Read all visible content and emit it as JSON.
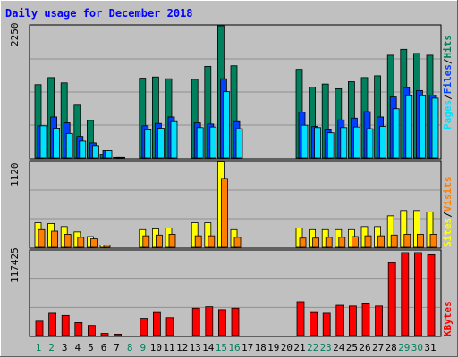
{
  "title": "Daily usage for December 2018",
  "colors": {
    "hits": "#00805c",
    "files": "#0040ff",
    "pages": "#00e0ff",
    "visits": "#ff8000",
    "sites": "#ffff00",
    "kbytes": "#ff0000",
    "title": "#0000ff",
    "weekend_day": "#00805c",
    "weekday_day": "#000000",
    "background": "#c0c0c0"
  },
  "legends": {
    "top": [
      "Pages",
      "/",
      "Files",
      "/",
      "Hits"
    ],
    "middle": [
      "Sites",
      "/",
      "Visits"
    ],
    "bottom": [
      "KBytes"
    ]
  },
  "y_max_labels": {
    "top": "2250",
    "middle": "1120",
    "bottom": "117425"
  },
  "chart_data": {
    "type": "bar",
    "title": "Daily usage for December 2018",
    "categories": [
      "1",
      "2",
      "3",
      "4",
      "5",
      "6",
      "7",
      "8",
      "9",
      "10",
      "11",
      "12",
      "13",
      "14",
      "15",
      "16",
      "17",
      "18",
      "19",
      "20",
      "21",
      "22",
      "23",
      "24",
      "25",
      "26",
      "27",
      "28",
      "29",
      "30",
      "31"
    ],
    "weekend_days": [
      "1",
      "2",
      "8",
      "9",
      "15",
      "16",
      "22",
      "23",
      "29",
      "30"
    ],
    "panels": [
      {
        "name": "Pages / Files / Hits",
        "ymax": 2250,
        "series": [
          {
            "name": "Hits",
            "values": [
              1250,
              1370,
              1280,
              900,
              640,
              60,
              10,
              0,
              1360,
              1380,
              1350,
              0,
              1340,
              1560,
              2250,
              1570,
              0,
              0,
              0,
              0,
              1510,
              1210,
              1260,
              1180,
              1300,
              1370,
              1400,
              1750,
              1850,
              1780,
              1750
            ]
          },
          {
            "name": "Files",
            "values": [
              550,
              700,
              600,
              370,
              260,
              130,
              10,
              0,
              550,
              590,
              700,
              0,
              600,
              580,
              1350,
              620,
              0,
              0,
              0,
              0,
              780,
              540,
              480,
              650,
              680,
              790,
              700,
              1040,
              1200,
              1150,
              1070
            ]
          },
          {
            "name": "Pages",
            "values": [
              550,
              510,
              420,
              290,
              200,
              130,
              10,
              0,
              480,
              510,
              620,
              0,
              520,
              530,
              1130,
              500,
              0,
              0,
              0,
              0,
              560,
              520,
              430,
              520,
              530,
              500,
              540,
              840,
              1060,
              1060,
              1020
            ]
          }
        ]
      },
      {
        "name": "Sites / Visits",
        "ymax": 1120,
        "series": [
          {
            "name": "Sites",
            "values": [
              320,
              310,
              270,
              200,
              140,
              30,
              0,
              0,
              230,
              240,
              250,
              0,
              320,
              320,
              1120,
              230,
              0,
              0,
              0,
              0,
              250,
              230,
              230,
              230,
              230,
              270,
              270,
              410,
              480,
              480,
              460
            ]
          },
          {
            "name": "Visits",
            "values": [
              230,
              210,
              170,
              130,
              110,
              30,
              0,
              0,
              150,
              160,
              170,
              0,
              150,
              150,
              900,
              130,
              0,
              0,
              0,
              0,
              120,
              120,
              130,
              130,
              140,
              150,
              150,
              160,
              170,
              170,
              170
            ]
          }
        ]
      },
      {
        "name": "KBytes",
        "ymax": 117425,
        "series": [
          {
            "name": "KBytes",
            "values": [
              20000,
              31000,
              28000,
              18000,
              14000,
              3000,
              2000,
              0,
              24000,
              32000,
              25000,
              0,
              38000,
              40000,
              36000,
              38000,
              0,
              0,
              0,
              0,
              47000,
              32000,
              31000,
              42000,
              41000,
              44000,
              41000,
              101000,
              115000,
              115000,
              112000
            ]
          }
        ]
      }
    ]
  }
}
